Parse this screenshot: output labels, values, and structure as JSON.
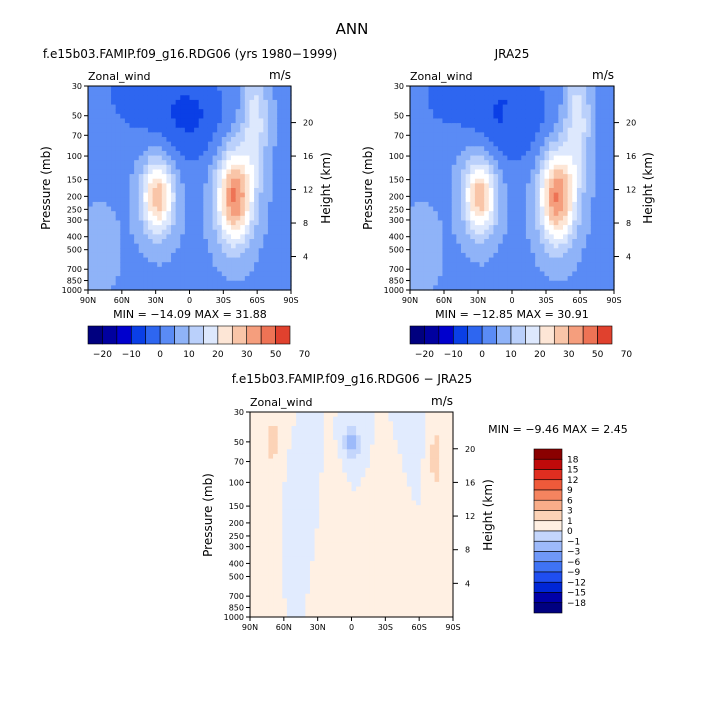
{
  "figure": {
    "main_title": "ANN",
    "colors": {
      "main": [
        "#00007f",
        "#00009f",
        "#0000cd",
        "#0a3fe6",
        "#2e66f0",
        "#5a8bf5",
        "#8fb3f8",
        "#bad0fb",
        "#dde8fd",
        "#ffffff",
        "#fde6d6",
        "#f9c5a8",
        "#f59e7d",
        "#ee7355",
        "#e0412e",
        "#c41515",
        "#9a0000",
        "#7f0000"
      ],
      "diff": [
        "#000080",
        "#0000a8",
        "#0026d6",
        "#1f4ef0",
        "#3f73f5",
        "#6f98f8",
        "#9dbafa",
        "#c4d6fc",
        "#e1ebfe",
        "#fff0e3",
        "#fcd3b7",
        "#f8ad89",
        "#f5845f",
        "#ef5a3a",
        "#e02e20",
        "#c00a0a",
        "#8a0000"
      ]
    }
  },
  "chart_data": [
    {
      "type": "heatmap",
      "title": "f.e15b03.FAMIP.f09_g16.RDG06 (yrs 1980−1999)",
      "left_label": "Zonal_wind",
      "right_label": "m/s",
      "xlabel": "",
      "ylabel": "Pressure (mb)",
      "ylabel_right": "Height (km)",
      "x_ticks": [
        "90N",
        "60N",
        "30N",
        "0",
        "30S",
        "60S",
        "90S"
      ],
      "x_values": [
        90,
        60,
        30,
        0,
        -30,
        -60,
        -90
      ],
      "y_ticks": [
        "30",
        "50",
        "70",
        "100",
        "150",
        "200",
        "250",
        "300",
        "400",
        "500",
        "700",
        "850",
        "1000"
      ],
      "y_values": [
        30,
        50,
        70,
        100,
        150,
        200,
        250,
        300,
        400,
        500,
        700,
        850,
        1000
      ],
      "height_ticks": [
        "20",
        "16",
        "12",
        "8",
        "4"
      ],
      "height_values": [
        20,
        16,
        12,
        8,
        4
      ],
      "minmax": "MIN = −14.09   MAX =  31.88",
      "min": -14.09,
      "max": 31.88,
      "colorbar": {
        "orientation": "horizontal",
        "labels": [
          "−20",
          "−10",
          "0",
          "10",
          "20",
          "30",
          "50",
          "70"
        ],
        "n_colors": 14,
        "color_start": 0
      },
      "scale": "main"
    },
    {
      "type": "heatmap",
      "title": "JRA25",
      "left_label": "Zonal_wind",
      "right_label": "m/s",
      "xlabel": "",
      "ylabel": "Pressure (mb)",
      "ylabel_right": "Height (km)",
      "x_ticks": [
        "90N",
        "60N",
        "30N",
        "0",
        "30S",
        "60S",
        "90S"
      ],
      "x_values": [
        90,
        60,
        30,
        0,
        -30,
        -60,
        -90
      ],
      "y_ticks": [
        "30",
        "50",
        "70",
        "100",
        "150",
        "200",
        "250",
        "300",
        "400",
        "500",
        "700",
        "850",
        "1000"
      ],
      "y_values": [
        30,
        50,
        70,
        100,
        150,
        200,
        250,
        300,
        400,
        500,
        700,
        850,
        1000
      ],
      "height_ticks": [
        "20",
        "16",
        "12",
        "8",
        "4"
      ],
      "height_values": [
        20,
        16,
        12,
        8,
        4
      ],
      "minmax": "MIN = −12.85   MAX =  30.91",
      "min": -12.85,
      "max": 30.91,
      "colorbar": {
        "orientation": "horizontal",
        "labels": [
          "−20",
          "−10",
          "0",
          "10",
          "20",
          "30",
          "50",
          "70"
        ],
        "n_colors": 14,
        "color_start": 0
      },
      "scale": "main"
    },
    {
      "type": "heatmap",
      "title": "f.e15b03.FAMIP.f09_g16.RDG06 − JRA25",
      "left_label": "Zonal_wind",
      "right_label": "m/s",
      "xlabel": "",
      "ylabel": "Pressure (mb)",
      "ylabel_right": "Height (km)",
      "x_ticks": [
        "90N",
        "60N",
        "30N",
        "0",
        "30S",
        "60S",
        "90S"
      ],
      "x_values": [
        90,
        60,
        30,
        0,
        -30,
        -60,
        -90
      ],
      "y_ticks": [
        "30",
        "50",
        "70",
        "100",
        "150",
        "200",
        "250",
        "300",
        "400",
        "500",
        "700",
        "850",
        "1000"
      ],
      "y_values": [
        30,
        50,
        70,
        100,
        150,
        200,
        250,
        300,
        400,
        500,
        700,
        850,
        1000
      ],
      "height_ticks": [
        "20",
        "16",
        "12",
        "8",
        "4"
      ],
      "height_values": [
        20,
        16,
        12,
        8,
        4
      ],
      "minmax": "MIN =   −9.46   MAX =    2.45",
      "min": -9.46,
      "max": 2.45,
      "colorbar": {
        "orientation": "vertical",
        "labels": [
          "18",
          "15",
          "12",
          "9",
          "6",
          "3",
          "1",
          "0",
          "−1",
          "−3",
          "−6",
          "−9",
          "−12",
          "−15",
          "−18"
        ],
        "n_colors": 16
      },
      "scale": "diff"
    }
  ]
}
